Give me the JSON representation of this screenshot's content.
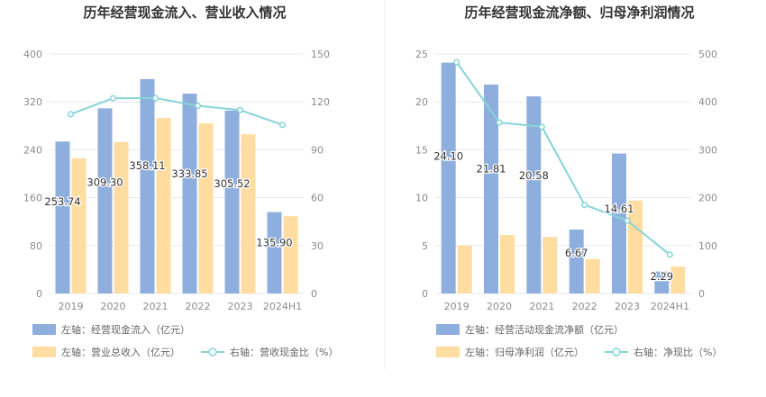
{
  "colors": {
    "bar_primary": "#8eaedd",
    "bar_secondary": "#ffdca0",
    "line": "#86d4d9",
    "axis_text": "#8c8c8c",
    "grid": "#e6e9f0",
    "title": "#333333",
    "label": "#333333",
    "legend_text": "#666666",
    "divider": "#eeeeee"
  },
  "chart_data": [
    {
      "type": "bar+line",
      "title": "历年经营现金流入、营业收入情况",
      "categories": [
        "2019",
        "2020",
        "2021",
        "2022",
        "2023",
        "2024H1"
      ],
      "left_axis": {
        "min": 0,
        "max": 400,
        "ticks": [
          "0",
          "80",
          "160",
          "240",
          "320",
          "400"
        ]
      },
      "right_axis": {
        "min": 0,
        "max": 150,
        "ticks": [
          "0",
          "30",
          "60",
          "90",
          "120",
          "150"
        ]
      },
      "series": [
        {
          "name": "左轴：经营现金流入（亿元）",
          "kind": "bar",
          "axis": "left",
          "color_key": "bar_primary",
          "values": [
            253.74,
            309.3,
            358.11,
            333.85,
            305.52,
            135.9
          ],
          "labels": [
            "253.74",
            "309.30",
            "358.11",
            "333.85",
            "305.52",
            "135.90"
          ]
        },
        {
          "name": "左轴：营业总收入（亿元）",
          "kind": "bar",
          "axis": "left",
          "color_key": "bar_secondary",
          "values": [
            226,
            253,
            293,
            284,
            266,
            129
          ]
        },
        {
          "name": "右轴：营收现金比（%）",
          "kind": "line",
          "axis": "right",
          "color_key": "line",
          "values": [
            112.3,
            122.3,
            122.4,
            117.6,
            114.9,
            105.6
          ]
        }
      ],
      "legend": [
        {
          "label": "左轴：经营现金流入（亿元）",
          "kind": "bar",
          "color_key": "bar_primary"
        },
        {
          "label": "左轴：营业总收入（亿元）",
          "kind": "bar",
          "color_key": "bar_secondary"
        },
        {
          "label": "右轴：营收现金比（%）",
          "kind": "line",
          "color_key": "line"
        }
      ]
    },
    {
      "type": "bar+line",
      "title": "历年经营现金流净额、归母净利润情况",
      "categories": [
        "2019",
        "2020",
        "2021",
        "2022",
        "2023",
        "2024H1"
      ],
      "left_axis": {
        "min": 0,
        "max": 25,
        "ticks": [
          "0",
          "5",
          "10",
          "15",
          "20",
          "25"
        ]
      },
      "right_axis": {
        "min": 0,
        "max": 500,
        "ticks": [
          "0",
          "100",
          "200",
          "300",
          "400",
          "500"
        ]
      },
      "series": [
        {
          "name": "左轴：经营活动现金流净额（亿元）",
          "kind": "bar",
          "axis": "left",
          "color_key": "bar_primary",
          "values": [
            24.1,
            21.81,
            20.58,
            6.67,
            14.61,
            2.29
          ],
          "labels": [
            "24.10",
            "21.81",
            "20.58",
            "6.67",
            "14.61",
            "2.29"
          ]
        },
        {
          "name": "左轴：归母净利润（亿元）",
          "kind": "bar",
          "axis": "left",
          "color_key": "bar_secondary",
          "values": [
            5.0,
            6.1,
            5.9,
            3.6,
            9.7,
            2.8
          ]
        },
        {
          "name": "右轴：净现比（%）",
          "kind": "line",
          "axis": "right",
          "color_key": "line",
          "values": [
            483,
            357,
            348,
            185,
            152,
            81
          ]
        }
      ],
      "legend": [
        {
          "label": "左轴：经营活动现金流净额（亿元）",
          "kind": "bar",
          "color_key": "bar_primary"
        },
        {
          "label": "左轴：归母净利润（亿元）",
          "kind": "bar",
          "color_key": "bar_secondary"
        },
        {
          "label": "右轴：净现比（%）",
          "kind": "line",
          "color_key": "line"
        }
      ]
    }
  ]
}
